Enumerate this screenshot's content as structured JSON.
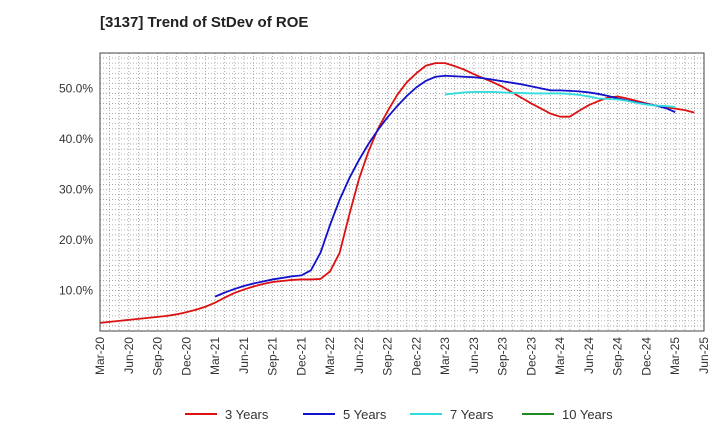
{
  "chart_data": {
    "type": "line",
    "title": "[3137]  Trend of StDev of ROE",
    "xlabel": "",
    "ylabel": "",
    "ylim": [
      2,
      57
    ],
    "y_ticks": [
      10,
      20,
      30,
      40,
      50
    ],
    "y_tick_labels": [
      "10.0%",
      "20.0%",
      "30.0%",
      "40.0%",
      "50.0%"
    ],
    "x_ticks": [
      "Mar-20",
      "Jun-20",
      "Sep-20",
      "Dec-20",
      "Mar-21",
      "Jun-21",
      "Sep-21",
      "Dec-21",
      "Mar-22",
      "Jun-22",
      "Sep-22",
      "Dec-22",
      "Mar-23",
      "Jun-23",
      "Sep-23",
      "Dec-23",
      "Mar-24",
      "Jun-24",
      "Sep-24",
      "Dec-24",
      "Mar-25",
      "Jun-25"
    ],
    "grid": true,
    "legend_position": "bottom",
    "series": [
      {
        "name": "3 Years",
        "color": "#dd1111",
        "start": "Mar-20",
        "step": "month",
        "values": [
          3.6,
          3.8,
          4.0,
          4.2,
          4.4,
          4.6,
          4.8,
          5.0,
          5.3,
          5.7,
          6.2,
          6.8,
          7.6,
          8.6,
          9.5,
          10.2,
          10.8,
          11.3,
          11.7,
          11.9,
          12.1,
          12.2,
          12.2,
          12.3,
          13.8,
          17.5,
          25.0,
          32.0,
          37.5,
          42.0,
          45.5,
          48.7,
          51.2,
          53.0,
          54.5,
          55.0,
          55.0,
          54.4,
          53.7,
          52.8,
          52.0,
          51.2,
          50.3,
          49.2,
          48.1,
          47.0,
          46.0,
          45.0,
          44.4,
          44.4,
          45.6,
          46.7,
          47.5,
          48.2,
          48.4,
          48.0,
          47.5,
          47.0,
          46.6,
          46.3,
          46.0,
          45.7,
          45.2
        ]
      },
      {
        "name": "5 Years",
        "color": "#1111cc",
        "start": "Mar-21",
        "step": "month",
        "values": [
          8.8,
          9.6,
          10.3,
          10.9,
          11.4,
          11.8,
          12.2,
          12.5,
          12.8,
          13.0,
          14.0,
          17.5,
          23.0,
          28.0,
          32.2,
          35.8,
          39.0,
          41.8,
          44.3,
          46.5,
          48.5,
          50.2,
          51.5,
          52.3,
          52.5,
          52.4,
          52.3,
          52.2,
          52.0,
          51.7,
          51.4,
          51.1,
          50.8,
          50.4,
          50.0,
          49.6,
          49.6,
          49.5,
          49.4,
          49.2,
          48.9,
          48.5,
          48.0,
          47.6,
          47.2,
          46.9,
          46.6,
          46.1,
          45.3
        ]
      },
      {
        "name": "7 Years",
        "color": "#33dddd",
        "start": "Mar-23",
        "step": "month",
        "values": [
          48.8,
          49.0,
          49.2,
          49.3,
          49.3,
          49.3,
          49.2,
          49.1,
          49.1,
          49.0,
          49.0,
          49.0,
          49.0,
          48.9,
          48.7,
          48.4,
          48.0,
          47.9,
          47.8,
          47.5,
          47.1,
          46.8,
          46.6,
          46.5,
          46.3
        ]
      },
      {
        "name": "10 Years",
        "color": "#228822",
        "start": "",
        "step": "month",
        "values": []
      }
    ]
  }
}
